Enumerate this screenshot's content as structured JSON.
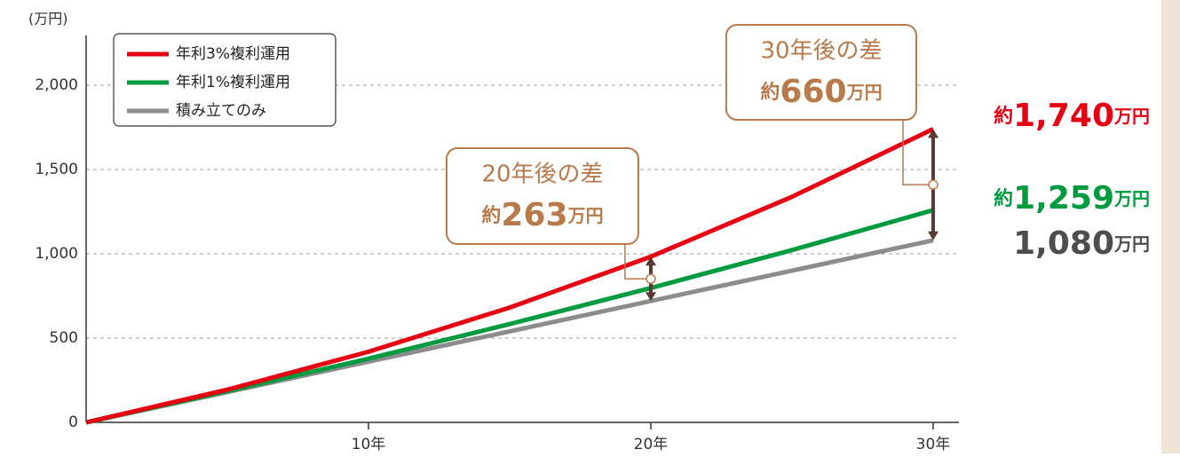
{
  "chart_data": {
    "type": "line",
    "y_unit_label": "(万円)",
    "x": [
      0,
      5,
      10,
      15,
      20,
      25,
      30
    ],
    "series": [
      {
        "name": "年利3%複利運用",
        "color": "#e60012",
        "values": [
          0,
          194,
          419,
          681,
          983,
          1338,
          1740
        ]
      },
      {
        "name": "年利1%複利運用",
        "color": "#009b3e",
        "values": [
          0,
          185,
          378,
          583,
          797,
          1022,
          1259
        ]
      },
      {
        "name": "積み立てのみ",
        "color": "#8c8c8c",
        "values": [
          0,
          180,
          360,
          540,
          720,
          900,
          1080
        ]
      }
    ],
    "xlim": [
      0,
      30
    ],
    "xticks": [
      {
        "value": 10,
        "label": "10年"
      },
      {
        "value": 20,
        "label": "20年"
      },
      {
        "value": 30,
        "label": "30年"
      }
    ],
    "ylim": [
      0,
      2000
    ],
    "yticks": [
      0,
      500,
      {
        "value": 1000,
        "label": "1,000"
      },
      {
        "value": 1500,
        "label": "1,500"
      },
      {
        "value": 2000,
        "label": "2,000"
      }
    ],
    "grid": true,
    "legend": "upper left",
    "annotations": [
      {
        "title": "20年後の差",
        "prefix": "約",
        "value": "263",
        "unit": "万円"
      },
      {
        "title": "30年後の差",
        "prefix": "約",
        "value": "660",
        "unit": "万円"
      }
    ],
    "end_labels": [
      {
        "prefix": "約",
        "value": "1,740",
        "unit": "万円"
      },
      {
        "prefix": "約",
        "value": "1,259",
        "unit": "万円"
      },
      {
        "value": "1,080",
        "unit": "万円"
      }
    ]
  }
}
